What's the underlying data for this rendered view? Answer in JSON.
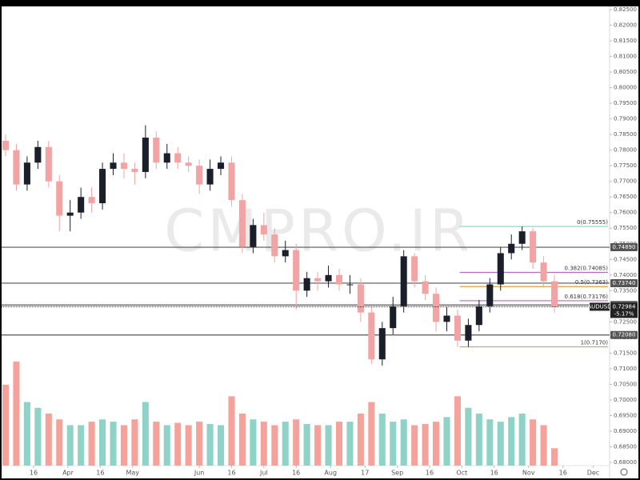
{
  "chart_data": {
    "type": "candlestick",
    "symbol": "AUDUSD",
    "watermark": "CMPRO.IR",
    "up_color": "#1b1f2a",
    "down_color": "#f2a3a3",
    "volume_up_color": "#8fd3c8",
    "volume_down_color": "#f5a29b",
    "x": [
      2,
      7,
      12,
      17,
      22,
      27,
      32,
      37,
      42,
      47,
      52,
      57,
      62,
      67,
      72,
      77,
      82,
      87,
      92,
      97,
      102,
      107,
      112,
      117,
      122,
      127,
      132,
      137,
      142,
      147,
      152,
      157,
      162,
      167,
      172,
      177,
      182,
      187,
      192,
      197,
      202,
      207,
      212,
      217,
      222,
      227,
      232,
      237,
      242,
      247,
      252,
      257
    ],
    "open": [
      0.783,
      0.78,
      0.769,
      0.776,
      0.781,
      0.77,
      0.759,
      0.76,
      0.765,
      0.763,
      0.774,
      0.776,
      0.774,
      0.773,
      0.784,
      0.776,
      0.779,
      0.776,
      0.775,
      0.769,
      0.774,
      0.776,
      0.764,
      0.749,
      0.756,
      0.753,
      0.746,
      0.748,
      0.735,
      0.739,
      0.738,
      0.74,
      0.737,
      0.737,
      0.728,
      0.713,
      0.723,
      0.73,
      0.746,
      0.738,
      0.734,
      0.725,
      0.727,
      0.719,
      0.724,
      0.73,
      0.737,
      0.747,
      0.75,
      0.754,
      0.744,
      0.738
    ],
    "high": [
      0.785,
      0.782,
      0.778,
      0.783,
      0.783,
      0.772,
      0.764,
      0.768,
      0.768,
      0.776,
      0.779,
      0.779,
      0.776,
      0.788,
      0.786,
      0.782,
      0.781,
      0.778,
      0.777,
      0.777,
      0.778,
      0.778,
      0.766,
      0.758,
      0.76,
      0.755,
      0.751,
      0.75,
      0.741,
      0.741,
      0.743,
      0.742,
      0.74,
      0.739,
      0.73,
      0.725,
      0.733,
      0.748,
      0.747,
      0.74,
      0.736,
      0.73,
      0.729,
      0.726,
      0.732,
      0.739,
      0.749,
      0.753,
      0.75555,
      0.755,
      0.746,
      0.74
    ],
    "low": [
      0.778,
      0.767,
      0.767,
      0.774,
      0.768,
      0.754,
      0.754,
      0.758,
      0.76,
      0.761,
      0.772,
      0.771,
      0.769,
      0.771,
      0.774,
      0.774,
      0.774,
      0.773,
      0.766,
      0.767,
      0.772,
      0.762,
      0.747,
      0.747,
      0.751,
      0.744,
      0.744,
      0.729,
      0.733,
      0.735,
      0.736,
      0.735,
      0.734,
      0.725,
      0.7115,
      0.711,
      0.721,
      0.728,
      0.736,
      0.732,
      0.722,
      0.722,
      0.717,
      0.717,
      0.722,
      0.728,
      0.735,
      0.745,
      0.748,
      0.742,
      0.736,
      0.728
    ],
    "close": [
      0.78,
      0.769,
      0.776,
      0.781,
      0.77,
      0.759,
      0.76,
      0.765,
      0.763,
      0.774,
      0.776,
      0.774,
      0.773,
      0.784,
      0.776,
      0.779,
      0.776,
      0.775,
      0.769,
      0.774,
      0.776,
      0.764,
      0.749,
      0.756,
      0.753,
      0.746,
      0.748,
      0.735,
      0.739,
      0.738,
      0.74,
      0.737,
      0.737,
      0.728,
      0.713,
      0.723,
      0.73,
      0.746,
      0.738,
      0.734,
      0.725,
      0.727,
      0.719,
      0.724,
      0.73,
      0.737,
      0.747,
      0.75,
      0.754,
      0.744,
      0.738,
      0.7298
    ],
    "volume": [
      70,
      90,
      55,
      50,
      45,
      40,
      35,
      35,
      38,
      40,
      38,
      35,
      40,
      55,
      38,
      35,
      37,
      35,
      38,
      36,
      35,
      60,
      45,
      40,
      38,
      35,
      38,
      40,
      36,
      35,
      35,
      38,
      38,
      45,
      55,
      45,
      38,
      40,
      35,
      36,
      38,
      42,
      60,
      50,
      45,
      40,
      38,
      42,
      45,
      40,
      35,
      15
    ],
    "xlim": [
      -0.6,
      281.9
    ],
    "xticks": [
      {
        "value": 15,
        "label": "16"
      },
      {
        "value": 31,
        "label": "Apr"
      },
      {
        "value": 46,
        "label": "16"
      },
      {
        "value": 61,
        "label": "May"
      },
      {
        "value": 92,
        "label": "Jun"
      },
      {
        "value": 107,
        "label": "16"
      },
      {
        "value": 122,
        "label": "Jul"
      },
      {
        "value": 137,
        "label": "16"
      },
      {
        "value": 153,
        "label": "Aug"
      },
      {
        "value": 169,
        "label": "17"
      },
      {
        "value": 184,
        "label": "Sep"
      },
      {
        "value": 199,
        "label": "16"
      },
      {
        "value": 214,
        "label": "Oct"
      },
      {
        "value": 229,
        "label": "16"
      },
      {
        "value": 245,
        "label": "Nov"
      },
      {
        "value": 261,
        "label": "16"
      },
      {
        "value": 275,
        "label": "Dec"
      }
    ],
    "ylim": [
      0.68,
      0.825
    ],
    "yticks": [
      {
        "value": 0.825,
        "label": "0.82500"
      },
      {
        "value": 0.82,
        "label": "0.82000"
      },
      {
        "value": 0.815,
        "label": "0.81500"
      },
      {
        "value": 0.81,
        "label": "0.81000"
      },
      {
        "value": 0.805,
        "label": "0.80500"
      },
      {
        "value": 0.8,
        "label": "0.80000"
      },
      {
        "value": 0.795,
        "label": "0.79500"
      },
      {
        "value": 0.79,
        "label": "0.79000"
      },
      {
        "value": 0.785,
        "label": "0.78500"
      },
      {
        "value": 0.78,
        "label": "0.78000"
      },
      {
        "value": 0.775,
        "label": "0.77500"
      },
      {
        "value": 0.77,
        "label": "0.77000"
      },
      {
        "value": 0.765,
        "label": "0.76500"
      },
      {
        "value": 0.76,
        "label": "0.76000"
      },
      {
        "value": 0.755,
        "label": "0.75500"
      },
      {
        "value": 0.75,
        "label": "0.75000"
      },
      {
        "value": 0.745,
        "label": "0.74500"
      },
      {
        "value": 0.74,
        "label": "0.74000"
      },
      {
        "value": 0.735,
        "label": "0.73500"
      },
      {
        "value": 0.73,
        "label": "0.73000"
      },
      {
        "value": 0.725,
        "label": "0.72500"
      },
      {
        "value": 0.72,
        "label": "0.72000"
      },
      {
        "value": 0.715,
        "label": "0.71500"
      },
      {
        "value": 0.71,
        "label": "0.71000"
      },
      {
        "value": 0.705,
        "label": "0.70500"
      },
      {
        "value": 0.7,
        "label": "0.70000"
      },
      {
        "value": 0.695,
        "label": "0.69500"
      },
      {
        "value": 0.69,
        "label": "0.69000"
      },
      {
        "value": 0.685,
        "label": "0.68500"
      },
      {
        "value": 0.68,
        "label": "0.68000"
      }
    ],
    "levels": [
      {
        "value": 0.7489,
        "label": "0.74890"
      },
      {
        "value": 0.7374,
        "label": "0.73740"
      },
      {
        "value": 0.7304,
        "label": "0.73040"
      },
      {
        "value": 0.7208,
        "label": "0.72080"
      }
    ],
    "last_price": {
      "value": 0.72984,
      "label": "0.72984"
    },
    "change": "-5.17%",
    "fib_start": 213,
    "fib": [
      {
        "value": 0.75555,
        "label": "0(0.75555)",
        "color": "#7fe0c4"
      },
      {
        "value": 0.74085,
        "label": "0.382(0.74085)",
        "color": "#b36bc2"
      },
      {
        "value": 0.7363,
        "label": "0.5(0.7363)",
        "color": "#e0a030"
      },
      {
        "value": 0.73176,
        "label": "0.618(0.73176)",
        "color": "#b36bc2"
      },
      {
        "value": 0.717,
        "label": "1(0.7170)",
        "color": "#e0a030"
      }
    ]
  }
}
